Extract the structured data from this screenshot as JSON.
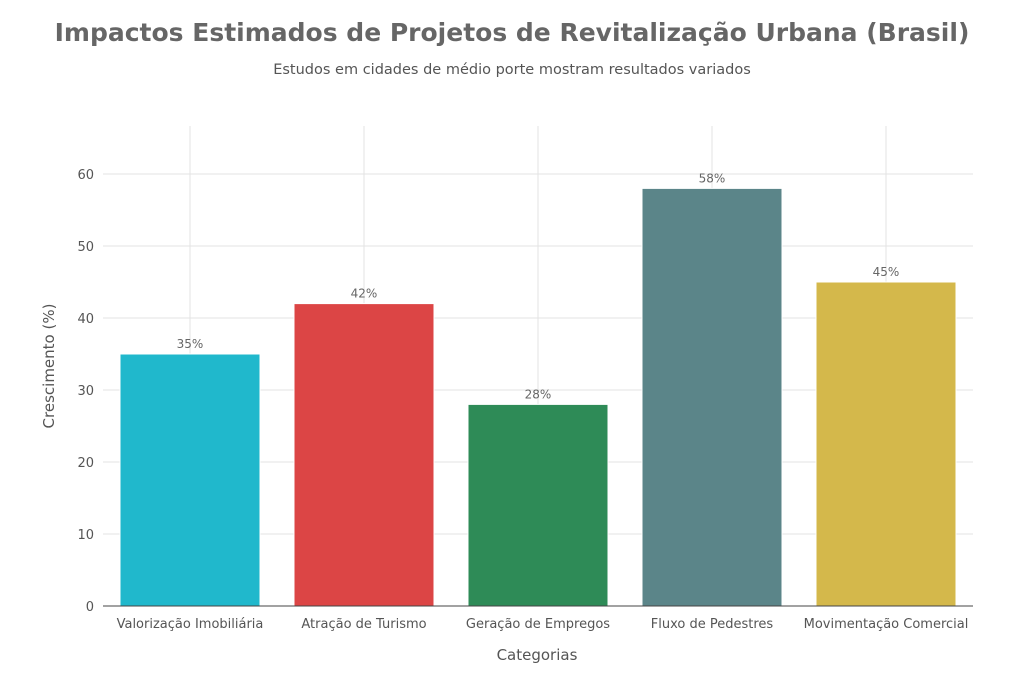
{
  "chart_data": {
    "type": "bar",
    "title": "Impactos Estimados de Projetos de Revitalização Urbana (Brasil)",
    "subtitle": "Estudos em cidades de médio porte mostram resultados variados",
    "xlabel": "Categorias",
    "ylabel": "Crescimento (%)",
    "categories": [
      "Valorização Imobiliária",
      "Atração de Turismo",
      "Geração de Empregos",
      "Fluxo de Pedestres",
      "Movimentação Comercial"
    ],
    "values": [
      35,
      42,
      28,
      58,
      45
    ],
    "data_labels": [
      "35%",
      "42%",
      "28%",
      "58%",
      "45%"
    ],
    "colors": [
      "#20b8cc",
      "#dc4545",
      "#2e8b57",
      "#5b8589",
      "#d4b84b"
    ],
    "ylim": [
      0,
      66
    ],
    "yticks": [
      0,
      10,
      20,
      30,
      40,
      50,
      60
    ],
    "grid": true,
    "legend": "none"
  }
}
